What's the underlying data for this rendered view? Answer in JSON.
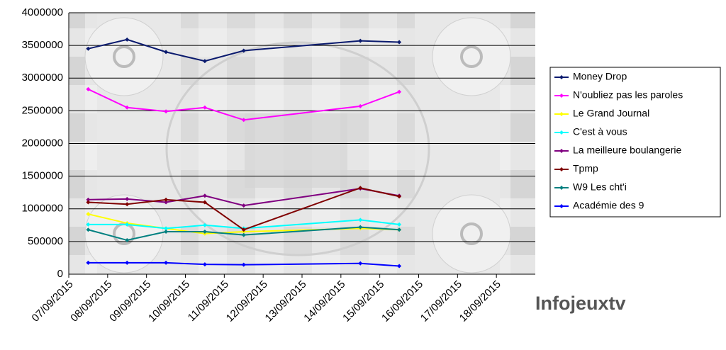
{
  "chart_data": {
    "type": "line",
    "x": [
      "07/09/2015",
      "08/09/2015",
      "09/09/2015",
      "10/09/2015",
      "11/09/2015",
      "14/09/2015",
      "15/09/2015"
    ],
    "xticks": [
      "07/09/2015",
      "08/09/2015",
      "09/09/2015",
      "10/09/2015",
      "11/09/2015",
      "12/09/2015",
      "13/09/2015",
      "14/09/2015",
      "15/09/2015",
      "16/09/2015",
      "17/09/2015",
      "18/09/2015"
    ],
    "ylim": [
      0,
      4000000
    ],
    "yticks": [
      0,
      500000,
      1000000,
      1500000,
      2000000,
      2500000,
      3000000,
      3500000,
      4000000
    ],
    "grid": true,
    "legend": "right",
    "series": [
      {
        "name": "Money Drop",
        "color": "#0a1a6e",
        "values": [
          3450000,
          3590000,
          3400000,
          3260000,
          3420000,
          3570000,
          3550000
        ]
      },
      {
        "name": "N'oubliez pas les paroles",
        "color": "#ff00ff",
        "values": [
          2830000,
          2550000,
          2490000,
          2550000,
          2360000,
          2570000,
          2790000
        ]
      },
      {
        "name": "Le Grand Journal",
        "color": "#ffff00",
        "values": [
          920000,
          780000,
          700000,
          620000,
          650000,
          700000,
          680000
        ]
      },
      {
        "name": "C'est à vous",
        "color": "#00ffff",
        "values": [
          760000,
          760000,
          700000,
          750000,
          700000,
          830000,
          760000
        ]
      },
      {
        "name": "La meilleure boulangerie",
        "color": "#800080",
        "values": [
          1140000,
          1150000,
          1100000,
          1200000,
          1050000,
          1310000,
          1200000
        ]
      },
      {
        "name": "Tpmp",
        "color": "#800000",
        "values": [
          1100000,
          1070000,
          1140000,
          1100000,
          680000,
          1320000,
          1190000
        ]
      },
      {
        "name": "W9 Les cht'i",
        "color": "#008080",
        "values": [
          680000,
          520000,
          650000,
          650000,
          600000,
          720000,
          680000
        ]
      },
      {
        "name": "Académie des 9",
        "color": "#0000ff",
        "values": [
          175000,
          175000,
          175000,
          150000,
          145000,
          165000,
          125000
        ]
      }
    ],
    "watermark": "Infojeuxtv"
  }
}
